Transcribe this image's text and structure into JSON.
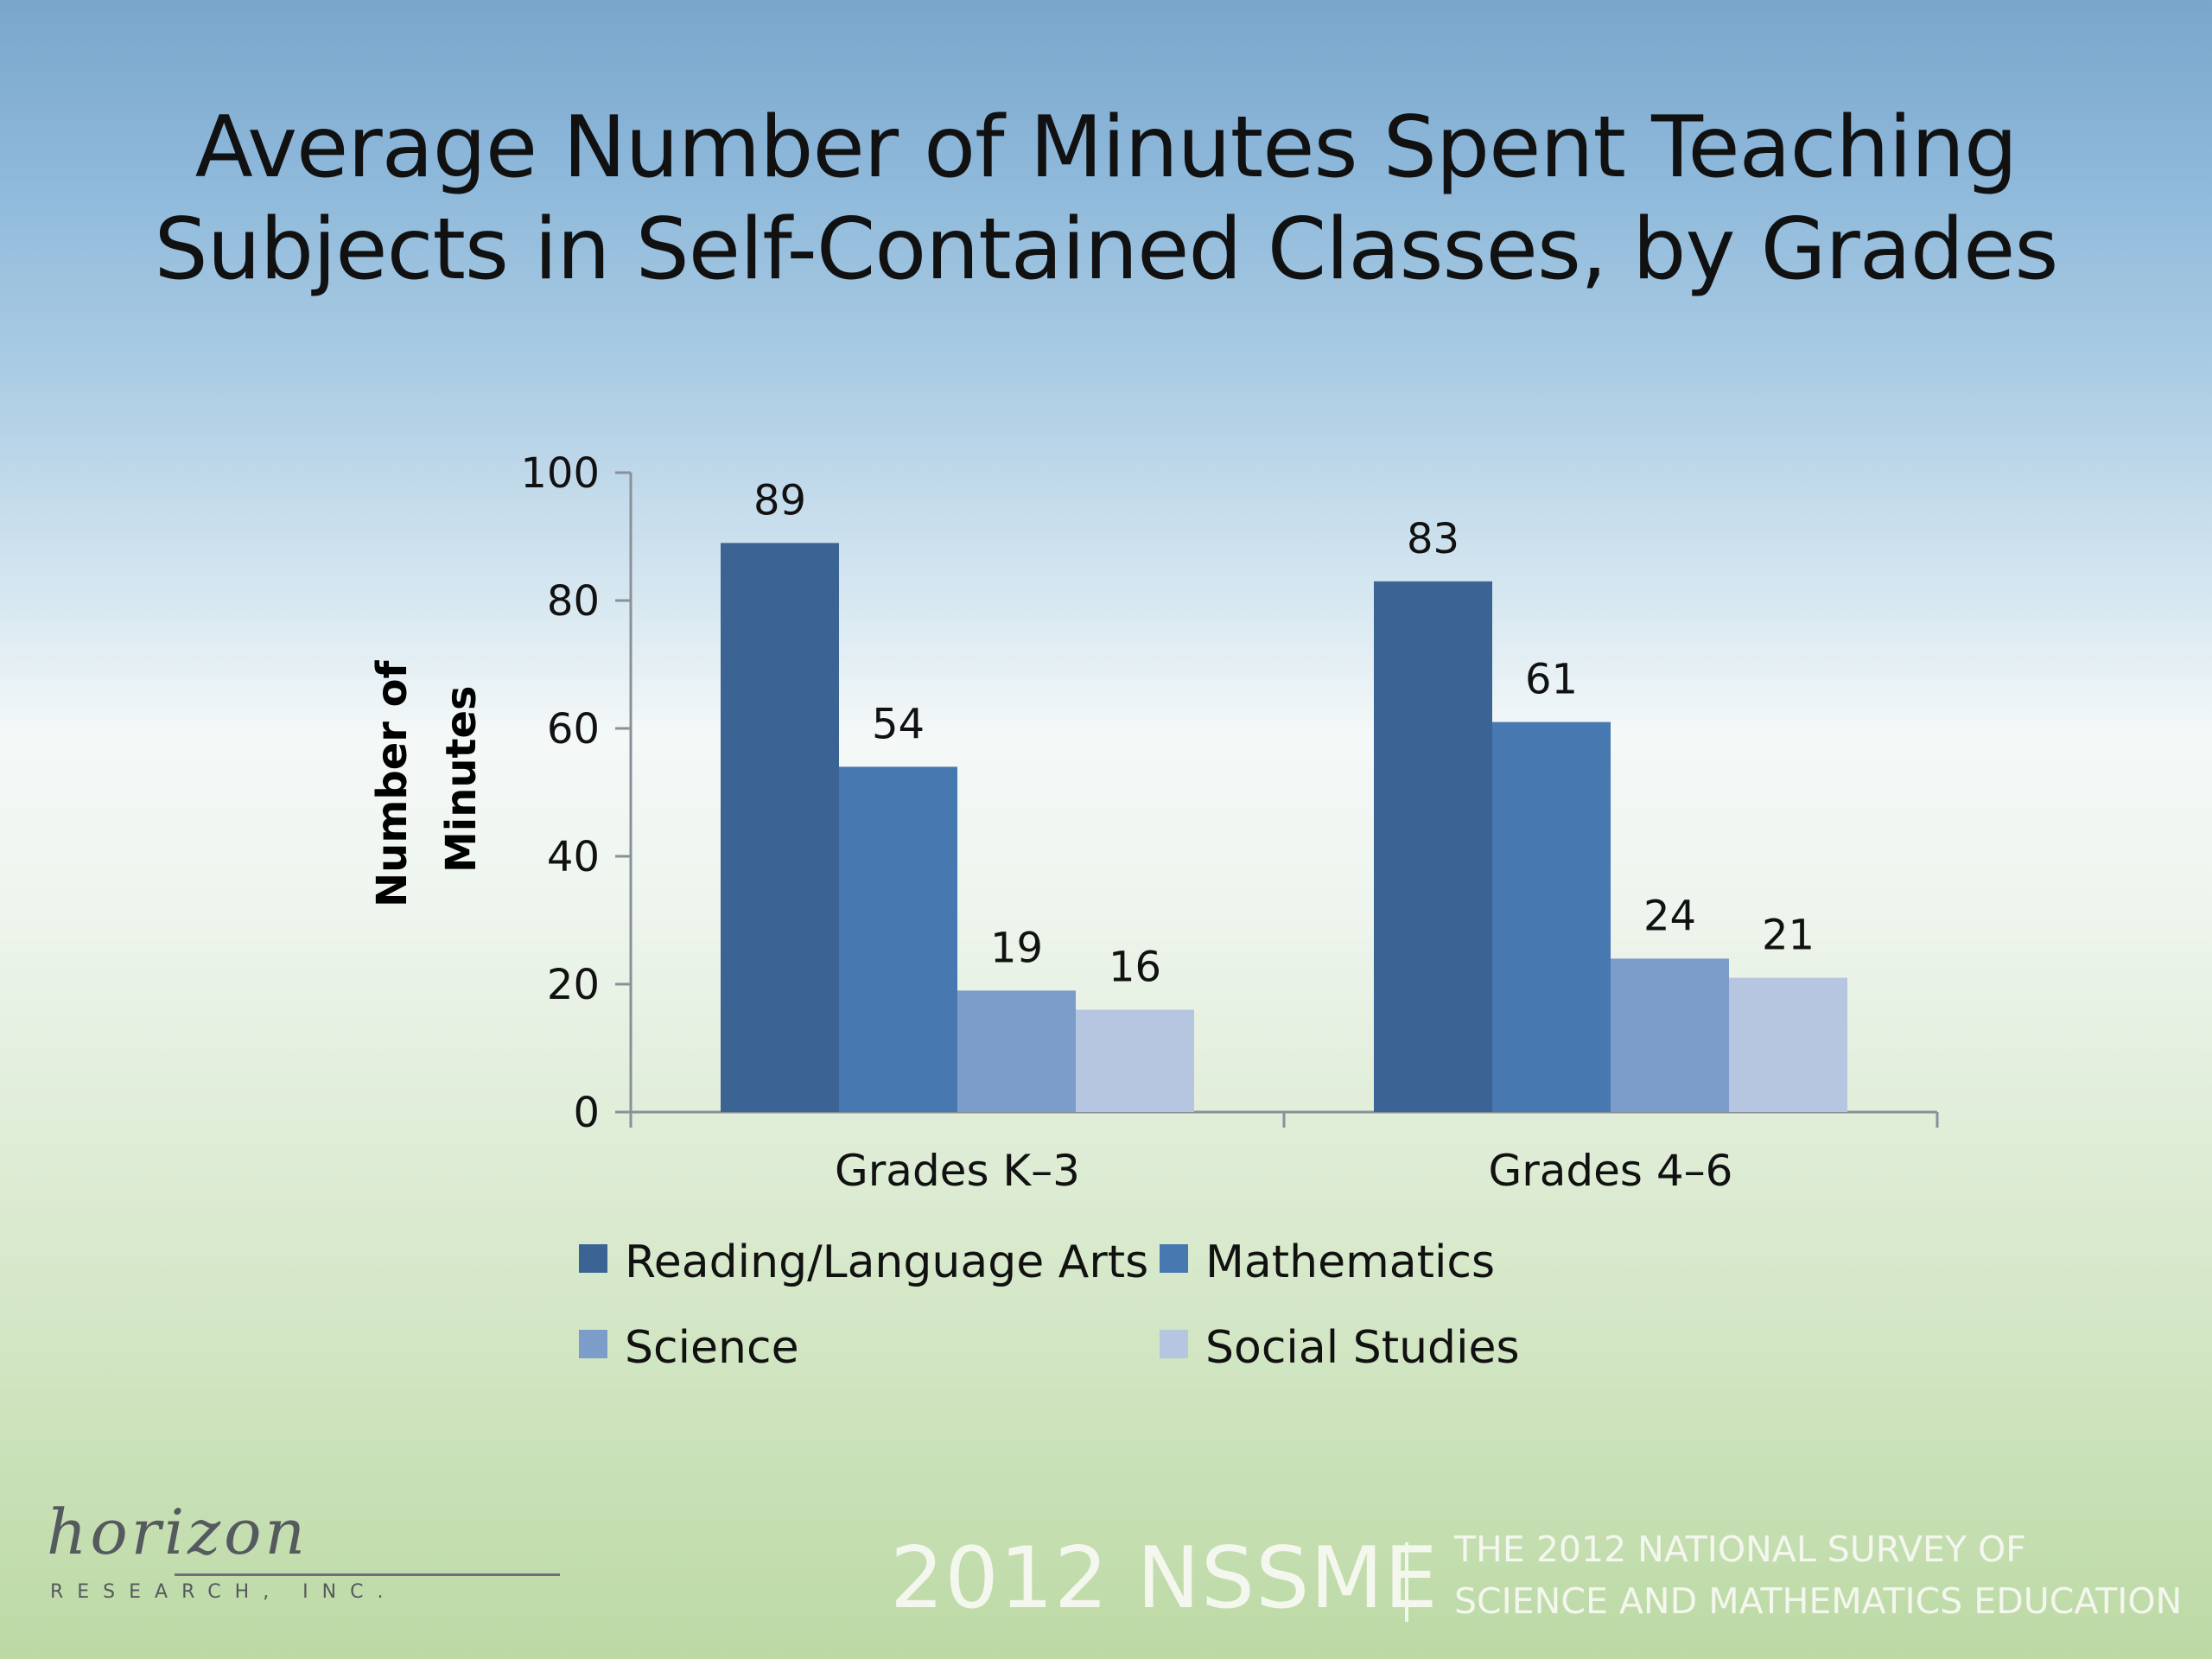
{
  "slide": {
    "title_line1": "Average Number of Minutes Spent Teaching",
    "title_line2": "Subjects in Self-Contained Classes, by Grades"
  },
  "chart_data": {
    "type": "bar",
    "title": "Average Number of Minutes Spent Teaching Subjects in Self-Contained Classes, by Grades",
    "categories": [
      "Grades K–3",
      "Grades 4–6"
    ],
    "series": [
      {
        "name": "Reading/Language Arts",
        "values": [
          89,
          83
        ],
        "color": "#3b6494"
      },
      {
        "name": "Mathematics",
        "values": [
          54,
          61
        ],
        "color": "#4878b0"
      },
      {
        "name": "Science",
        "values": [
          19,
          24
        ],
        "color": "#7c9dca"
      },
      {
        "name": "Social Studies",
        "values": [
          16,
          21
        ],
        "color": "#b6c5e0"
      }
    ],
    "ylabel_line1": "Number of",
    "ylabel_line2": "Minutes",
    "ylim": [
      0,
      100
    ],
    "yticks": [
      0,
      20,
      40,
      60,
      80,
      100
    ],
    "grid": false,
    "legend_position": "bottom"
  },
  "footer": {
    "logo_name": "horizon",
    "logo_subtitle": "RESEARCH, INC.",
    "brand": "2012 NSSME",
    "subtitle_line1": "THE 2012 NATIONAL SURVEY OF",
    "subtitle_line2": "SCIENCE AND MATHEMATICS EDUCATION"
  }
}
